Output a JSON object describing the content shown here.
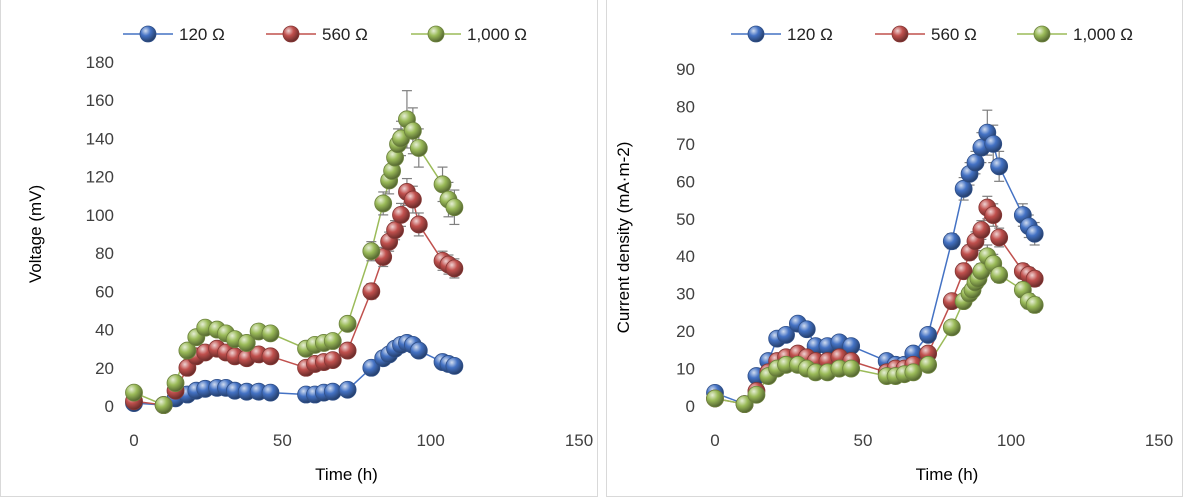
{
  "chart_data": [
    {
      "type": "scatter",
      "title": "",
      "xlabel": "Time (h)",
      "ylabel": "Voltage (mV)",
      "xlim": [
        0,
        150
      ],
      "ylim": [
        0,
        180
      ],
      "xticks": [
        "0",
        "50",
        "100",
        "150"
      ],
      "yticks": [
        "0",
        "20",
        "40",
        "60",
        "80",
        "100",
        "120",
        "140",
        "160",
        "180"
      ],
      "legend": "top",
      "grid": false,
      "series": [
        {
          "name": "120 Ω",
          "color": "#4472C4",
          "x": [
            0,
            10,
            14,
            18,
            21,
            24,
            28,
            31,
            34,
            38,
            42,
            46,
            58,
            61,
            64,
            67,
            72,
            80,
            84,
            86,
            88,
            90,
            92,
            94,
            96,
            104,
            106,
            108
          ],
          "y": [
            1.5,
            0.5,
            4,
            6,
            8,
            9,
            9.5,
            9.5,
            8,
            7.5,
            7.5,
            7,
            6,
            6,
            7,
            7.5,
            8.5,
            20,
            25,
            27,
            30,
            32,
            33,
            32,
            29,
            23,
            22,
            21
          ],
          "err": [
            0,
            0,
            0,
            0,
            0,
            0,
            0,
            0,
            0,
            0,
            0,
            0,
            0,
            0,
            0,
            0,
            0,
            1,
            1,
            1,
            1.5,
            1.5,
            1.5,
            1.5,
            1.5,
            1,
            1,
            1
          ]
        },
        {
          "name": "560 Ω",
          "color": "#C0504D",
          "x": [
            0,
            10,
            14,
            18,
            21,
            24,
            28,
            31,
            34,
            38,
            42,
            46,
            58,
            61,
            64,
            67,
            72,
            80,
            84,
            86,
            88,
            90,
            92,
            94,
            96,
            104,
            106,
            108
          ],
          "y": [
            2.5,
            0.5,
            8,
            20,
            26,
            28,
            30,
            28,
            26,
            25,
            27,
            26,
            20,
            22,
            23,
            24,
            29,
            60,
            78,
            86,
            92,
            100,
            112,
            108,
            95,
            76,
            74,
            72
          ],
          "err": [
            0,
            0,
            0,
            0,
            0,
            0,
            0,
            0,
            0,
            0,
            0,
            0,
            0,
            0,
            0,
            0,
            0,
            4,
            5,
            5,
            5,
            6,
            7,
            7,
            6,
            5,
            5,
            5
          ]
        },
        {
          "name": "1,000 Ω",
          "color": "#9BBB59",
          "x": [
            0,
            10,
            14,
            18,
            21,
            24,
            28,
            31,
            34,
            38,
            42,
            46,
            58,
            61,
            64,
            67,
            72,
            80,
            84,
            86,
            87,
            88,
            89,
            90,
            92,
            94,
            96,
            104,
            106,
            108
          ],
          "y": [
            7,
            0.5,
            12,
            29,
            36,
            41,
            40,
            38,
            35,
            33,
            39,
            38,
            30,
            32,
            33,
            34,
            43,
            81,
            106,
            118,
            123,
            130,
            137,
            140,
            150,
            144,
            135,
            116,
            108,
            104
          ],
          "err": [
            0,
            0,
            0,
            0,
            0,
            0,
            0,
            0,
            0,
            0,
            0,
            0,
            0,
            0,
            0,
            0,
            0,
            5,
            6,
            7,
            7,
            8,
            8,
            9,
            15,
            12,
            10,
            9,
            9,
            9
          ]
        }
      ]
    },
    {
      "type": "scatter",
      "title": "",
      "xlabel": "Time (h)",
      "ylabel": "Current density (mA·m-2)",
      "xlim": [
        0,
        150
      ],
      "ylim": [
        0,
        90
      ],
      "xticks": [
        "0",
        "50",
        "100",
        "150"
      ],
      "yticks": [
        "0",
        "10",
        "20",
        "30",
        "40",
        "50",
        "60",
        "70",
        "80",
        "90"
      ],
      "legend": "top",
      "grid": false,
      "series": [
        {
          "name": "120 Ω",
          "color": "#4472C4",
          "x": [
            0,
            10,
            14,
            18,
            21,
            24,
            28,
            31,
            34,
            38,
            42,
            46,
            58,
            61,
            64,
            67,
            72,
            80,
            84,
            86,
            88,
            90,
            92,
            94,
            96,
            104,
            106,
            108
          ],
          "y": [
            3.5,
            0.5,
            8,
            12,
            18,
            19,
            22,
            20.5,
            16,
            16,
            17,
            16,
            12,
            11,
            11,
            14,
            19,
            44,
            58,
            62,
            65,
            69,
            73,
            70,
            64,
            51,
            48,
            46
          ],
          "err": [
            0,
            0,
            0,
            0,
            0,
            0,
            0,
            0,
            0,
            0,
            0,
            0,
            0,
            0,
            0,
            0,
            0,
            2,
            3,
            3,
            3,
            4,
            6,
            5,
            4,
            3,
            3,
            3
          ]
        },
        {
          "name": "560 Ω",
          "color": "#C0504D",
          "x": [
            0,
            10,
            14,
            18,
            21,
            24,
            28,
            31,
            34,
            38,
            42,
            46,
            58,
            61,
            64,
            67,
            72,
            80,
            84,
            86,
            88,
            90,
            92,
            94,
            96,
            104,
            106,
            108
          ],
          "y": [
            2,
            0.5,
            4,
            9,
            12,
            13,
            14,
            13,
            12,
            12,
            13,
            12,
            9,
            10,
            10,
            11,
            14,
            28,
            36,
            41,
            44,
            47,
            53,
            51,
            45,
            36,
            35,
            34
          ],
          "err": [
            0,
            0,
            0,
            0,
            0,
            0,
            0,
            0,
            0,
            0,
            0,
            0,
            0,
            0,
            0,
            0,
            0,
            1.5,
            2,
            2,
            2.5,
            2.5,
            3,
            3,
            2.5,
            2,
            2,
            2
          ]
        },
        {
          "name": "1,000 Ω",
          "color": "#9BBB59",
          "x": [
            0,
            10,
            14,
            18,
            21,
            24,
            28,
            31,
            34,
            38,
            42,
            46,
            58,
            61,
            64,
            67,
            72,
            80,
            84,
            86,
            87,
            88,
            89,
            90,
            92,
            94,
            96,
            104,
            106,
            108
          ],
          "y": [
            2,
            0.5,
            3,
            8,
            10,
            11,
            11,
            10,
            9,
            9,
            10,
            10,
            8,
            8,
            8.5,
            9,
            11,
            21,
            28,
            30,
            31,
            33,
            34,
            36,
            40,
            38,
            35,
            31,
            28,
            27
          ],
          "err": [
            0,
            0,
            0,
            0,
            0,
            0,
            0,
            0,
            0,
            0,
            0,
            0,
            0,
            0,
            0,
            0,
            0,
            1,
            1.5,
            1.5,
            1.5,
            2,
            2,
            2,
            3,
            2.5,
            2,
            2,
            2,
            2
          ]
        }
      ]
    }
  ]
}
